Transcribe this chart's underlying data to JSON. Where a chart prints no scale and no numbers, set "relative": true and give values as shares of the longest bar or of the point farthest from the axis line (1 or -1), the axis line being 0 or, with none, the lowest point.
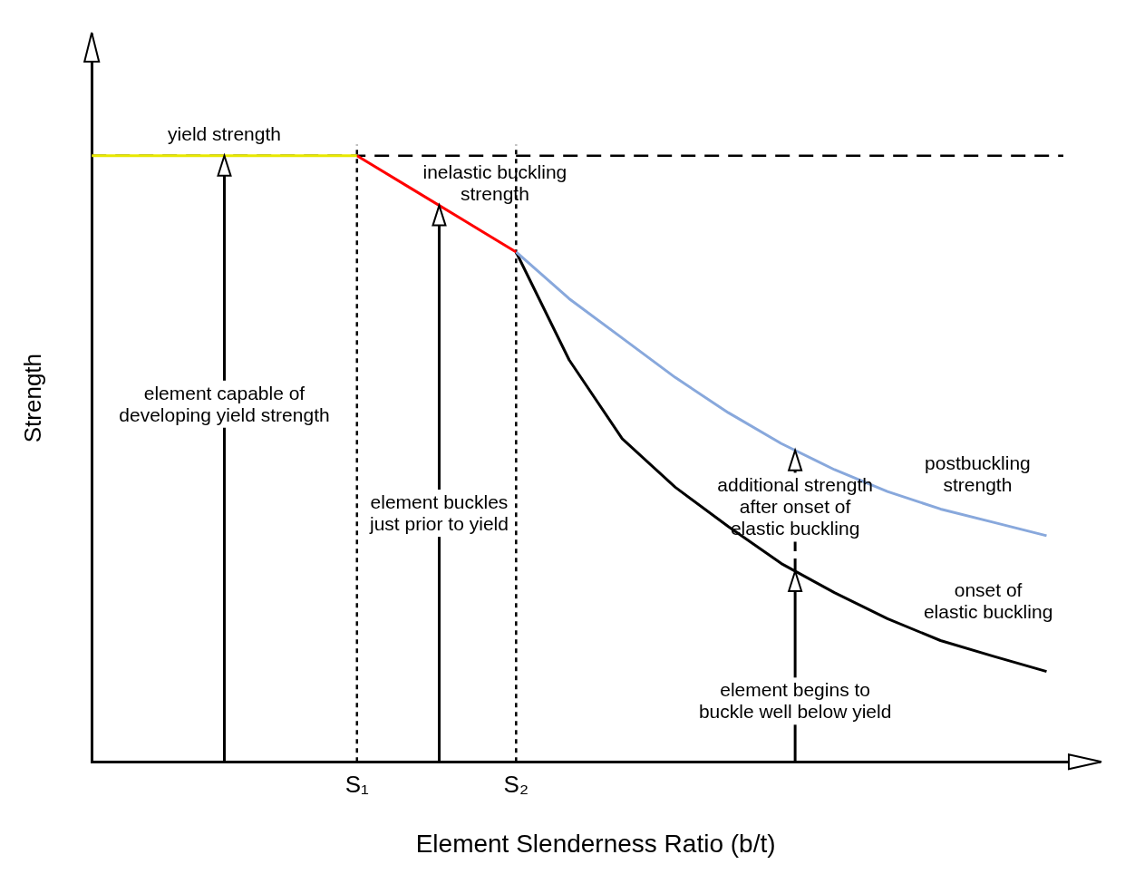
{
  "chart_data": {
    "type": "line",
    "xlabel": "Element Slenderness Ratio (b/t)",
    "ylabel": "Strength",
    "relative": true,
    "tick_labels": "x",
    "legend": false,
    "grid": false,
    "marker": "none",
    "line_style": "solid",
    "categories": [
      null,
      null,
      null,
      null,
      null,
      "S₁",
      null,
      null,
      "S₂",
      null,
      null,
      null,
      null,
      null,
      null,
      null,
      null,
      null,
      null,
      null
    ],
    "series": [
      {
        "color": "#e8e800",
        "values": [
          1,
          1,
          1,
          1,
          1,
          1,
          null,
          null,
          null,
          null,
          null,
          null,
          null,
          null,
          null,
          null,
          null,
          null,
          null,
          null
        ]
      },
      {
        "color": "#ff0000",
        "values": [
          null,
          null,
          null,
          null,
          null,
          1,
          0.947,
          0.894,
          0.841,
          null,
          null,
          null,
          null,
          null,
          null,
          null,
          null,
          null,
          null,
          null
        ]
      },
      {
        "color": "#88a8dc",
        "values": [
          null,
          null,
          null,
          null,
          null,
          null,
          null,
          null,
          0.841,
          0.764,
          0.699,
          0.634,
          0.576,
          0.525,
          0.482,
          0.446,
          0.417,
          0.395,
          0.373,
          null
        ]
      },
      {
        "color": "#000000",
        "values": [
          null,
          null,
          null,
          null,
          null,
          null,
          null,
          null,
          0.841,
          0.663,
          0.533,
          0.453,
          0.388,
          0.327,
          0.279,
          0.236,
          0.2,
          0.174,
          0.149,
          null
        ]
      }
    ],
    "ref_lines": [
      {
        "axis": "y",
        "value": 1,
        "line_style": "dashed",
        "color": "#000000"
      },
      {
        "axis": "x",
        "value": "S₁",
        "line_style": "dotted",
        "color": "#000000"
      },
      {
        "axis": "x",
        "value": "S₂",
        "line_style": "dotted",
        "color": "#000000"
      }
    ],
    "annotations": [
      "yield strength",
      "inelastic buckling\nstrength",
      "element capable of\ndeveloping yield strength",
      "element buckles\njust prior to yield",
      "additional strength\nafter onset of\nelastic buckling",
      "postbuckling\nstrength",
      "onset of\nelastic buckling",
      "element begins to\nbuckle well below yield"
    ]
  }
}
